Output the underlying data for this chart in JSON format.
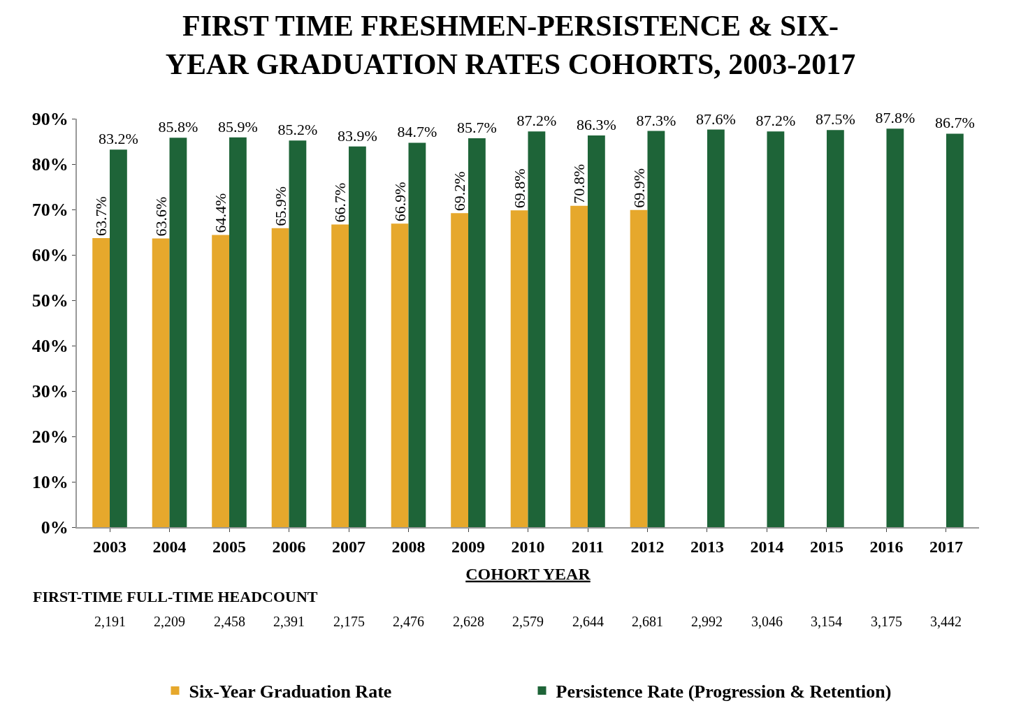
{
  "chart_data": {
    "type": "bar",
    "title": "FIRST TIME FRESHMEN-PERSISTENCE & SIX-YEAR GRADUATION RATES COHORTS, 2003-2017",
    "xlabel": "COHORT YEAR",
    "categories": [
      "2003",
      "2004",
      "2005",
      "2006",
      "2007",
      "2008",
      "2009",
      "2010",
      "2011",
      "2012",
      "2013",
      "2014",
      "2015",
      "2016",
      "2017"
    ],
    "series": [
      {
        "name": "Six-Year Graduation Rate",
        "color": "#e6a82c",
        "values": [
          63.7,
          63.6,
          64.4,
          65.9,
          66.7,
          66.9,
          69.2,
          69.8,
          70.8,
          69.9,
          null,
          null,
          null,
          null,
          null
        ],
        "value_labels": [
          "63.7%",
          "63.6%",
          "64.4%",
          "65.9%",
          "66.7%",
          "66.9%",
          "69.2%",
          "69.8%",
          "70.8%",
          "69.9%",
          null,
          null,
          null,
          null,
          null
        ]
      },
      {
        "name": "Persistence Rate (Progression & Retention)",
        "color": "#1e6438",
        "values": [
          83.2,
          85.8,
          85.9,
          85.2,
          83.9,
          84.7,
          85.7,
          87.2,
          86.3,
          87.3,
          87.6,
          87.2,
          87.5,
          87.8,
          86.7
        ],
        "value_labels": [
          "83.2%",
          "85.8%",
          "85.9%",
          "85.2%",
          "83.9%",
          "84.7%",
          "85.7%",
          "87.2%",
          "86.3%",
          "87.3%",
          "87.6%",
          "87.2%",
          "87.5%",
          "87.8%",
          "86.7%"
        ]
      }
    ],
    "ylim": [
      0,
      90
    ],
    "yticks": [
      {
        "value": 0,
        "label": "0%"
      },
      {
        "value": 10,
        "label": "10%"
      },
      {
        "value": 20,
        "label": "20%"
      },
      {
        "value": 30,
        "label": "30%"
      },
      {
        "value": 40,
        "label": "40%"
      },
      {
        "value": 50,
        "label": "50%"
      },
      {
        "value": 60,
        "label": "60%"
      },
      {
        "value": 70,
        "label": "70%"
      },
      {
        "value": 80,
        "label": "80%"
      },
      {
        "value": 90,
        "label": "90%"
      }
    ],
    "legend": "bottom",
    "annotations": [
      "FIRST-TIME FULL-TIME HEADCOUNT",
      "2,191",
      "2,209",
      "2,458",
      "2,391",
      "2,175",
      "2,476",
      "2,628",
      "2,579",
      "2,644",
      "2,681",
      "2,992",
      "3,046",
      "3,154",
      "3,175",
      "3,442"
    ]
  }
}
